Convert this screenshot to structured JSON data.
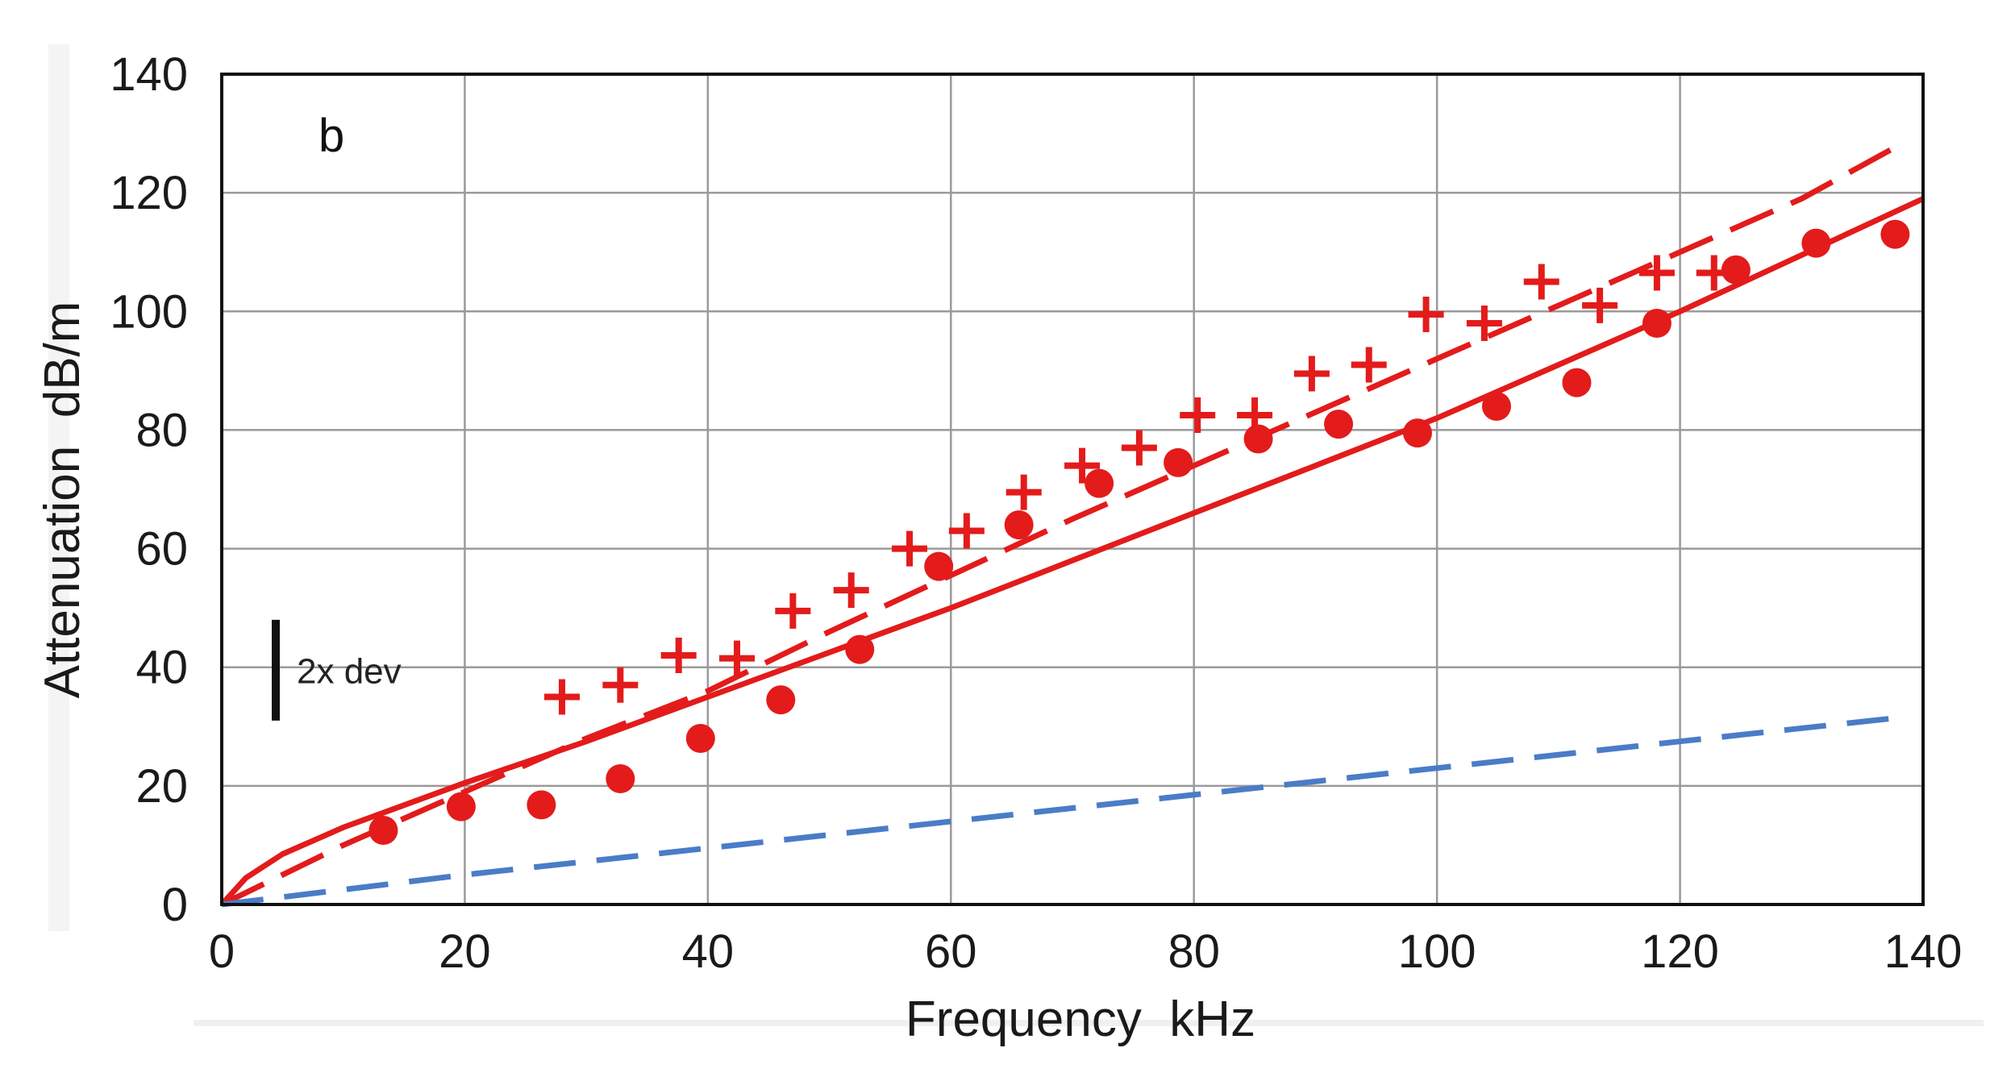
{
  "chart_data": {
    "type": "scatter",
    "panel_label": "b",
    "xlabel": "Frequency  kHz",
    "ylabel": "Attenuation  dB/m",
    "xlim": [
      0,
      140
    ],
    "ylim": [
      0,
      140
    ],
    "x_ticks": [
      0,
      20,
      40,
      60,
      80,
      100,
      120,
      140
    ],
    "y_ticks": [
      0,
      20,
      40,
      60,
      80,
      100,
      120,
      140
    ],
    "grid": true,
    "colors": {
      "red": "#e31b1b",
      "blue": "#4a7cc7",
      "grid": "#9a9a9a",
      "frame": "#111111"
    },
    "series": [
      {
        "name": "circles",
        "kind": "markers",
        "marker": "circle",
        "color": "#e31b1b",
        "x": [
          13.3,
          19.7,
          26.3,
          32.8,
          39.4,
          46.0,
          52.5,
          59.0,
          65.6,
          72.2,
          78.7,
          85.3,
          91.9,
          98.4,
          104.9,
          111.5,
          118.1,
          124.6,
          131.2,
          137.7
        ],
        "y": [
          12.5,
          16.5,
          16.8,
          21.2,
          28.0,
          34.5,
          43.0,
          57.0,
          64.0,
          71.0,
          74.5,
          78.5,
          81.0,
          79.5,
          84.0,
          88.0,
          98.0,
          107.0,
          111.5,
          113.0
        ]
      },
      {
        "name": "crosses",
        "kind": "markers",
        "marker": "plus",
        "color": "#e31b1b",
        "x": [
          28.0,
          32.8,
          37.6,
          42.4,
          47.0,
          51.8,
          56.6,
          61.3,
          66.0,
          70.8,
          75.5,
          80.3,
          85.0,
          89.7,
          94.4,
          99.1,
          103.9,
          108.6,
          113.4,
          118.1,
          122.8
        ],
        "y": [
          35.0,
          37.0,
          42.0,
          41.5,
          49.5,
          53.0,
          60.0,
          63.0,
          69.5,
          74.0,
          77.0,
          82.5,
          82.5,
          89.5,
          91.0,
          99.5,
          98.0,
          105.0,
          101.0,
          106.5,
          106.5
        ]
      },
      {
        "name": "red solid",
        "kind": "line",
        "style": "solid",
        "color": "#e31b1b",
        "x": [
          0,
          2,
          5,
          10,
          20,
          30,
          40,
          50,
          60,
          70,
          80,
          90,
          100,
          110,
          120,
          130,
          140
        ],
        "y": [
          0,
          4.5,
          8.5,
          13.0,
          20.5,
          27.5,
          35.0,
          42.5,
          50.0,
          58.0,
          66.0,
          74.0,
          82.0,
          91.0,
          100.0,
          109.5,
          119.0
        ]
      },
      {
        "name": "red dashed",
        "kind": "line",
        "style": "dashed",
        "color": "#e31b1b",
        "x": [
          0,
          5,
          10,
          20,
          30,
          40,
          50,
          60,
          70,
          80,
          90,
          100,
          110,
          120,
          130,
          138
        ],
        "y": [
          0,
          5.0,
          10.0,
          19.0,
          28.0,
          36.0,
          46.0,
          55.5,
          65.0,
          74.0,
          83.0,
          92.0,
          101.0,
          110.0,
          119.0,
          128.0
        ]
      },
      {
        "name": "blue dashed",
        "kind": "line",
        "style": "dashed",
        "color": "#4a7cc7",
        "x": [
          0,
          20,
          40,
          60,
          80,
          100,
          120,
          138
        ],
        "y": [
          0,
          5.0,
          9.5,
          14.0,
          18.5,
          23.0,
          27.5,
          31.5
        ]
      }
    ],
    "scale_bar": {
      "label": "2x dev",
      "from": 31,
      "to": 48
    }
  }
}
